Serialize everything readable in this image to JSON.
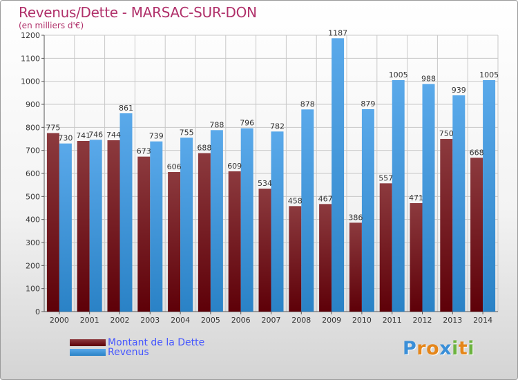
{
  "title": "Revenus/Dette - MARSAC-SUR-DON",
  "subtitle": "(en milliers d'€)",
  "logo": {
    "letters": [
      "P",
      "r",
      "o",
      "x",
      "i",
      "t",
      "i"
    ],
    "colors": [
      "#3a8fd8",
      "#e5861a",
      "#e5861a",
      "#3a8fd8",
      "#6cb33f",
      "#e5861a",
      "#6cb33f"
    ]
  },
  "colors": {
    "dette": "#6b0a0f",
    "revenus": "#4d9fe0"
  },
  "chart_data": {
    "type": "bar",
    "title": "Revenus/Dette - MARSAC-SUR-DON",
    "xlabel": "",
    "ylabel": "",
    "ylim": [
      0,
      1200
    ],
    "ytick_step": 100,
    "grid": true,
    "legend_position": "bottom-left",
    "categories": [
      "2000",
      "2001",
      "2002",
      "2003",
      "2004",
      "2005",
      "2006",
      "2007",
      "2008",
      "2009",
      "2010",
      "2011",
      "2012",
      "2013",
      "2014"
    ],
    "series": [
      {
        "name": "Montant de la Dette",
        "values": [
          775,
          741,
          744,
          673,
          606,
          688,
          609,
          534,
          458,
          467,
          386,
          557,
          471,
          750,
          668
        ]
      },
      {
        "name": "Revenus",
        "values": [
          730,
          746,
          861,
          739,
          755,
          788,
          796,
          782,
          878,
          1187,
          879,
          1005,
          988,
          939,
          1005
        ]
      }
    ]
  }
}
